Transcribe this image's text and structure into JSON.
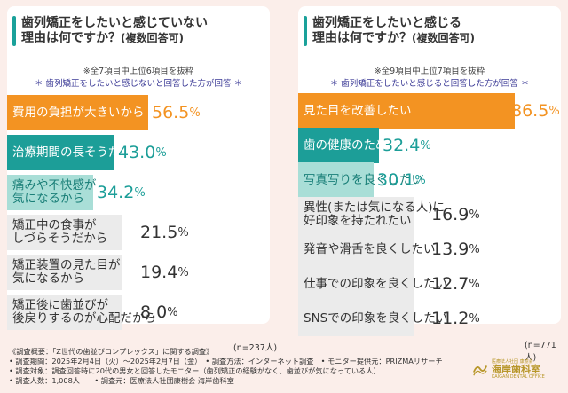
{
  "charts": {
    "left": {
      "title_line1": "歯列矯正をしたいと感じていない",
      "title_line2": "理由は何ですか？",
      "title_suffix": "(複数回答可)",
      "note": "※全7項目中上位6項目を抜粋",
      "subtitle": "歯列矯正をしたいと感じないと回答した方が回答",
      "n_label": "(n=237人)"
    },
    "right": {
      "title_line1": "歯列矯正をしたいと感じる",
      "title_line2": "理由は何ですか？",
      "title_suffix": "(複数回答可)",
      "note": "※全9項目中上位7項目を抜粋",
      "subtitle": "歯列矯正をしたいと感じると回答した方が回答",
      "n_label": "(n=771人)"
    }
  },
  "chart_data": [
    {
      "type": "bar",
      "orientation": "horizontal",
      "title": "歯列矯正をしたいと感じていない理由は何ですか？(複数回答可)",
      "categories": [
        "費用の負担が大きいから",
        "治療期間の長そうだから",
        "痛みや不快感が\n気になるから",
        "矯正中の食事が\nしづらそうだから",
        "矯正装置の見た目が\n気になるから",
        "矯正後に歯並びが\n後戻りするのが心配だから"
      ],
      "values": [
        56.5,
        43.0,
        34.2,
        21.5,
        19.4,
        8.0
      ],
      "value_labels": [
        "56.5",
        "43.0",
        "34.2",
        "21.5",
        "19.4",
        "8.0"
      ],
      "unit": "%",
      "colors": [
        "#f39322",
        "#1c9e98",
        "#a9ded7",
        "#ebebeb",
        "#ebebeb",
        "#ebebeb"
      ]
    },
    {
      "type": "bar",
      "orientation": "horizontal",
      "title": "歯列矯正をしたいと感じる理由は何ですか？(複数回答可)",
      "categories": [
        "見た目を改善したい",
        "歯の健康のため",
        "写真写りを良くしたい",
        "異性(または気になる人)に\n好印象を持たれたい",
        "発音や滑舌を良くしたい",
        "仕事での印象を良くしたい",
        "SNSでの印象を良くしたい"
      ],
      "values": [
        86.5,
        32.4,
        30.1,
        16.9,
        13.9,
        12.7,
        11.2
      ],
      "value_labels": [
        "86.5",
        "32.4",
        "30.1",
        "16.9",
        "13.9",
        "12.7",
        "11.2"
      ],
      "unit": "%",
      "colors": [
        "#f39322",
        "#1c9e98",
        "#a9ded7",
        "#ebebeb",
        "#ebebeb",
        "#ebebeb",
        "#ebebeb"
      ]
    }
  ],
  "footer": {
    "lines": [
      "《調査概要：「Z世代の歯並びコンプレックス」に関する調査》",
      "• 調査期間：2025年2月4日（火）〜2025年2月7日（金）　• 調査方法：インターネット調査　• モニター提供元：PRIZMAリサーチ",
      "• 調査対象：調査回答時に20代の男女と回答したモニター（歯列矯正の経験がなく、歯並びが気になっている人）",
      "• 調査人数：1,008人　　• 調査元：医療法人社団康樹会 海岸歯科室"
    ]
  },
  "logo": {
    "tagline": "医療法人社団 康樹会",
    "name": "海岸歯科室",
    "name_en": "KAIGAN DENTAL OFFICE"
  }
}
